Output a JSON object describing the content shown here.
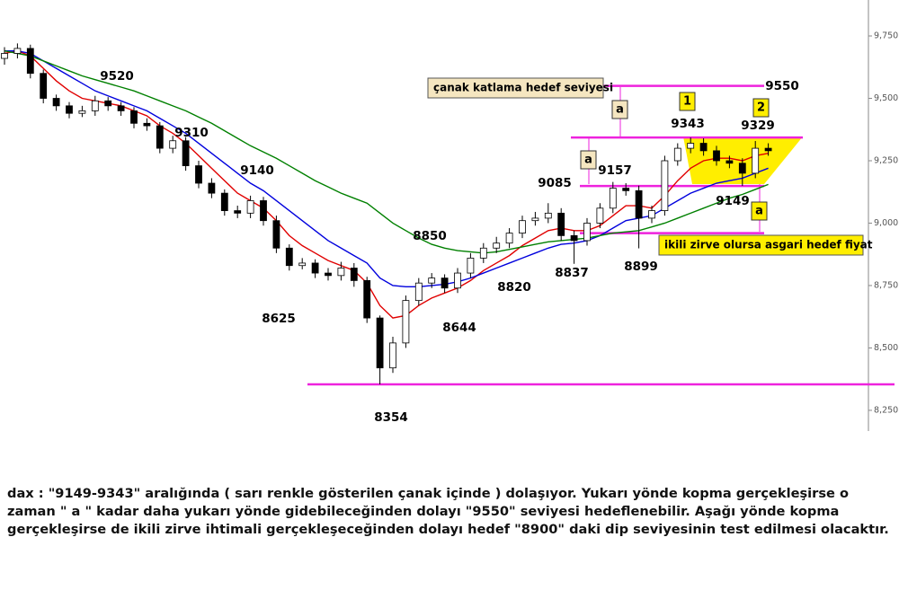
{
  "chart_data": {
    "type": "candlestick",
    "ylim": [
      8167,
      9894
    ],
    "yticks": [
      {
        "value": 8250,
        "label": "8,250."
      },
      {
        "value": 8500,
        "label": "8,500."
      },
      {
        "value": 8750,
        "label": "8,750."
      },
      {
        "value": 9000,
        "label": "9,000."
      },
      {
        "value": 9250,
        "label": "9,250."
      },
      {
        "value": 9500,
        "label": "9,500."
      },
      {
        "value": 9750,
        "label": "9,750."
      }
    ],
    "candles": {
      "open": [
        9660,
        9680,
        9700,
        9600,
        9500,
        9470,
        9440,
        9450,
        9490,
        9470,
        9450,
        9400,
        9390,
        9300,
        9330,
        9230,
        9160,
        9120,
        9050,
        9040,
        9090,
        9010,
        8900,
        8830,
        8840,
        8800,
        8790,
        8820,
        8770,
        8620,
        8420,
        8520,
        8690,
        8760,
        8780,
        8740,
        8800,
        8860,
        8900,
        8920,
        8960,
        9010,
        9020,
        9040,
        8950,
        8930,
        9000,
        9060,
        9140,
        9130,
        9020,
        9050,
        9250,
        9300,
        9320,
        9290,
        9250,
        9240,
        9200,
        9300
      ],
      "high": [
        9705,
        9720,
        9715,
        9615,
        9515,
        9485,
        9470,
        9510,
        9505,
        9485,
        9465,
        9420,
        9405,
        9350,
        9345,
        9250,
        9180,
        9135,
        9070,
        9110,
        9105,
        9030,
        8915,
        8860,
        8855,
        8820,
        8845,
        8840,
        8785,
        8630,
        8545,
        8710,
        8780,
        8800,
        8795,
        8820,
        8880,
        8920,
        8945,
        8980,
        9030,
        9045,
        9080,
        9060,
        8970,
        9020,
        9080,
        9165,
        9160,
        9150,
        9070,
        9270,
        9320,
        9343,
        9340,
        9310,
        9270,
        9260,
        9329,
        9320
      ],
      "low": [
        9635,
        9660,
        9580,
        9480,
        9450,
        9420,
        9425,
        9430,
        9450,
        9430,
        9380,
        9370,
        9280,
        9280,
        9210,
        9140,
        9100,
        9030,
        9020,
        9020,
        8990,
        8880,
        8810,
        8815,
        8780,
        8770,
        8770,
        8745,
        8600,
        8354,
        8400,
        8500,
        8670,
        8740,
        8720,
        8720,
        8780,
        8840,
        8880,
        8900,
        8940,
        8990,
        9000,
        8930,
        8837,
        8910,
        8980,
        9040,
        9110,
        8899,
        9000,
        9030,
        9230,
        9280,
        9270,
        9230,
        9220,
        9149,
        9180,
        9270
      ],
      "close": [
        9680,
        9700,
        9600,
        9500,
        9470,
        9440,
        9450,
        9490,
        9470,
        9450,
        9400,
        9390,
        9300,
        9330,
        9230,
        9160,
        9120,
        9050,
        9040,
        9090,
        9010,
        8900,
        8830,
        8840,
        8800,
        8790,
        8820,
        8770,
        8620,
        8420,
        8520,
        8690,
        8760,
        8780,
        8740,
        8800,
        8860,
        8900,
        8920,
        8960,
        9010,
        9020,
        9040,
        8950,
        8930,
        9000,
        9060,
        9140,
        9130,
        9020,
        9050,
        9250,
        9300,
        9320,
        9290,
        9250,
        9240,
        9200,
        9300,
        9290
      ]
    },
    "moving_averages": [
      {
        "color": "#e00000",
        "values": [
          9680,
          9690,
          9670,
          9620,
          9570,
          9530,
          9500,
          9490,
          9480,
          9470,
          9450,
          9430,
          9390,
          9360,
          9320,
          9270,
          9220,
          9170,
          9120,
          9090,
          9060,
          9010,
          8950,
          8910,
          8880,
          8850,
          8830,
          8810,
          8760,
          8670,
          8620,
          8630,
          8670,
          8700,
          8720,
          8740,
          8770,
          8810,
          8840,
          8870,
          8910,
          8940,
          8970,
          8980,
          8970,
          8970,
          8990,
          9030,
          9070,
          9070,
          9060,
          9110,
          9170,
          9220,
          9250,
          9260,
          9260,
          9250,
          9270,
          9280
        ]
      },
      {
        "color": "#0000dd",
        "values": [
          9690,
          9690,
          9680,
          9650,
          9620,
          9590,
          9560,
          9530,
          9510,
          9490,
          9470,
          9450,
          9420,
          9390,
          9360,
          9320,
          9280,
          9240,
          9200,
          9160,
          9130,
          9090,
          9050,
          9010,
          8970,
          8930,
          8900,
          8870,
          8840,
          8780,
          8750,
          8745,
          8745,
          8750,
          8755,
          8765,
          8780,
          8800,
          8820,
          8840,
          8860,
          8880,
          8900,
          8915,
          8920,
          8930,
          8950,
          8980,
          9010,
          9020,
          9030,
          9060,
          9090,
          9120,
          9140,
          9160,
          9170,
          9180,
          9200,
          9220
        ]
      },
      {
        "color": "#008000",
        "values": [
          9690,
          9680,
          9670,
          9650,
          9630,
          9610,
          9590,
          9575,
          9560,
          9545,
          9530,
          9510,
          9490,
          9470,
          9450,
          9425,
          9400,
          9370,
          9340,
          9310,
          9285,
          9260,
          9230,
          9200,
          9170,
          9145,
          9120,
          9100,
          9080,
          9040,
          9000,
          8970,
          8940,
          8915,
          8900,
          8890,
          8885,
          8880,
          8885,
          8895,
          8905,
          8915,
          8925,
          8930,
          8935,
          8940,
          8950,
          8960,
          8965,
          8970,
          8985,
          9000,
          9020,
          9040,
          9060,
          9080,
          9100,
          9115,
          9135,
          9155
        ]
      }
    ],
    "levels": [
      9550,
      9343,
      9149,
      8960,
      8354
    ],
    "level_color": "#ee22dd",
    "annotations": [
      9520,
      9310,
      9140,
      8625,
      8354,
      8850,
      8644,
      8820,
      8837,
      8899,
      9085,
      9157,
      9149,
      9343,
      9329,
      9550
    ],
    "callouts": [
      "çanak katlama hedef seviyesi",
      "ikili zirve  olursa asgari hedef fiyat"
    ],
    "markers": [
      "a",
      "a",
      "a",
      "1",
      "2"
    ]
  },
  "note": {
    "lines": [
      "dax : \"9149-9343\" aralığında ( sarı renkle gösterilen çanak içinde ) dolaşıyor. Yukarı yönde kopma gerçekleşirse o",
      "zaman \" a \" kadar daha yukarı yönde gidebileceğinden dolayı \"9550\" seviyesi hedeflenebilir. Aşağı yönde kopma",
      "gerçekleşirse de ikili zirve ihtimali gerçekleşeceğinden dolayı hedef \"8900\" daki dip seviyesinin test edilmesi olacaktır."
    ]
  }
}
